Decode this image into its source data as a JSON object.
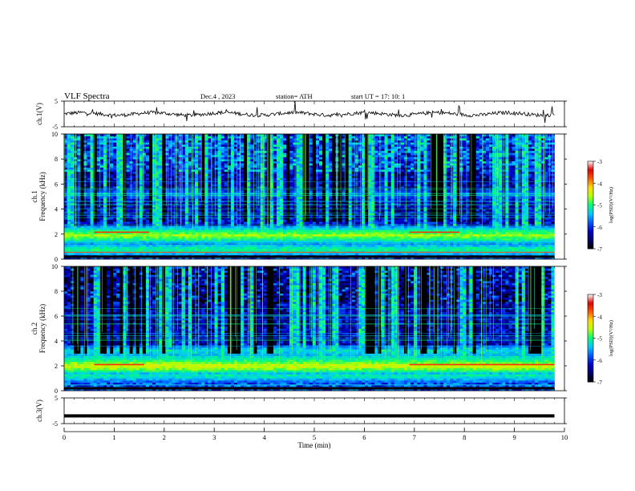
{
  "header": {
    "title": "VLF  Spectra",
    "date": "Dec.4  , 2023",
    "station": "station= ATH",
    "start": "start  UT  =    17: 10: 1"
  },
  "colorbar": {
    "label": "log(PSD)(V²/Hz)",
    "ticks": [
      "-3",
      "-4",
      "-5",
      "-6",
      "-7"
    ],
    "colors": [
      "#ffffff",
      "#ff0000",
      "#ffd000",
      "#00ff40",
      "#00b0ff",
      "#0000b0",
      "#000000"
    ]
  },
  "chart_data": [
    {
      "type": "line",
      "name": "ch1-waveform",
      "ylabel": "ch.1(V)",
      "ylim": [
        -5,
        5
      ],
      "yticks": [
        "5",
        "-5"
      ],
      "xlim": [
        0,
        10
      ],
      "baseline": 0,
      "amplitude_note": "noisy trace around 0 V with spikes"
    },
    {
      "type": "heatmap",
      "name": "ch1-spectrogram",
      "ylabel_top": "ch.1",
      "ylabel": "Frequency (kHz)",
      "ylim": [
        0,
        10
      ],
      "yticks": [
        "0",
        "2",
        "4",
        "6",
        "8",
        "10"
      ],
      "xlim": [
        0,
        10
      ],
      "bands_khz": [
        {
          "f": 1.9,
          "level": -4.6
        },
        {
          "f": 2.2,
          "level": -5.0
        },
        {
          "f": 0.8,
          "level": -5.0
        },
        {
          "f": 5.2,
          "level": -5.6
        }
      ],
      "strong_line": {
        "f": 2.15,
        "segments": [
          [
            0.6,
            1.7
          ],
          [
            6.9,
            7.9
          ]
        ]
      }
    },
    {
      "type": "heatmap",
      "name": "ch2-spectrogram",
      "ylabel_top": "ch.2",
      "ylabel": "Frequency (kHz)",
      "ylim": [
        0,
        10
      ],
      "yticks": [
        "0",
        "2",
        "4",
        "6",
        "8",
        "10"
      ],
      "xlim": [
        0,
        10
      ],
      "bands_khz": [
        {
          "f": 2.0,
          "level": -4.4
        },
        {
          "f": 2.5,
          "level": -5.0
        },
        {
          "f": 3.2,
          "level": -5.2
        },
        {
          "f": 1.2,
          "level": -5.1
        }
      ],
      "strong_line": {
        "f": 2.1,
        "segments": [
          [
            0.6,
            1.6
          ],
          [
            6.9,
            9.8
          ]
        ]
      }
    },
    {
      "type": "line",
      "name": "ch3-waveform",
      "ylabel": "ch.3(V)",
      "ylim": [
        -5,
        5
      ],
      "yticks": [
        "5",
        "-5"
      ],
      "xlim": [
        0,
        10
      ],
      "baseline": -2,
      "amplitude_note": "flat thick trace"
    }
  ],
  "xaxis": {
    "label": "Time  (min)",
    "ticks": [
      "0",
      "1",
      "2",
      "3",
      "4",
      "5",
      "6",
      "7",
      "8",
      "9",
      "10"
    ],
    "xlim": [
      0,
      10
    ],
    "data_end": 9.8
  }
}
